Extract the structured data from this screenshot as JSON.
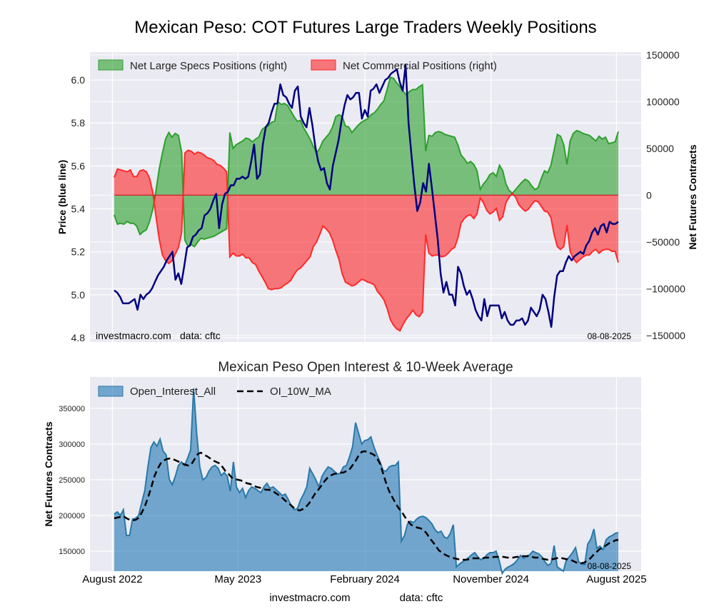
{
  "title": "Mexican Peso: COT Futures Large Traders Weekly Positions",
  "colors": {
    "specs": "#2ca02c",
    "commercial": "#ff0000",
    "price": "#000080",
    "open_interest": "#1f77b4",
    "ma": "#000000",
    "panel_bg": "#eaeaf2"
  },
  "chart_data": [
    {
      "type": "line",
      "name": "positions",
      "x_start": "2022-08-05",
      "x_end": "2025-08-05",
      "left_axis": {
        "label": "Price (blue line)",
        "ylim": [
          4.78,
          6.13
        ],
        "ticks": [
          4.8,
          5.0,
          5.2,
          5.4,
          5.6,
          5.8,
          6.0
        ],
        "tick_labels": [
          "4.8",
          "5.0",
          "5.2",
          "5.4",
          "5.6",
          "5.8",
          "6.0"
        ]
      },
      "right_axis": {
        "label": "Net Futures Contracts",
        "ylim": [
          -157000,
          153000
        ],
        "ticks": [
          -150000,
          -100000,
          -50000,
          0,
          50000,
          100000,
          150000
        ],
        "tick_labels": [
          "−150000",
          "−100000",
          "−50000",
          "0",
          "50000",
          "100000",
          "150000"
        ]
      },
      "legend": [
        "Net Large Specs Positions (right)",
        "Net Commercial Positions (right)"
      ],
      "watermark": "investmacro.com",
      "source": "data: cftc",
      "date_label": "08-08-2025",
      "series": [
        {
          "name": "Net Large Specs Positions (right)",
          "axis": "right",
          "kind": "fill",
          "values": [
            -21000,
            -31000,
            -30000,
            -31000,
            -28000,
            -30000,
            -30000,
            -33000,
            -42000,
            -39000,
            -37000,
            -28000,
            -15000,
            5000,
            28000,
            45000,
            60000,
            67000,
            62000,
            66000,
            64000,
            46000,
            -48000,
            -55000,
            -53000,
            -55000,
            -50000,
            -46000,
            -47000,
            -46000,
            -45000,
            -44000,
            -42000,
            -40000,
            -38000,
            -36000,
            67000,
            50000,
            54000,
            56000,
            58000,
            61000,
            60000,
            57000,
            60000,
            62000,
            70000,
            73000,
            74000,
            78000,
            79000,
            100000,
            97000,
            98000,
            96000,
            90000,
            84000,
            79000,
            80000,
            72000,
            66000,
            60000,
            52000,
            45000,
            50000,
            58000,
            62000,
            66000,
            73000,
            84000,
            86000,
            84000,
            74000,
            73000,
            67000,
            71000,
            75000,
            78000,
            80000,
            82000,
            86000,
            88000,
            92000,
            97000,
            101000,
            113000,
            126000,
            125000,
            120000,
            116000,
            111000,
            107000,
            111000,
            113000,
            113000,
            116000,
            118000,
            47000,
            64000,
            63000,
            67000,
            68000,
            67000,
            65000,
            64000,
            63000,
            62000,
            54000,
            43000,
            39000,
            34000,
            36000,
            33000,
            26000,
            6000,
            12000,
            16000,
            22000,
            24000,
            20000,
            32000,
            26000,
            12000,
            5000,
            2000,
            6000,
            10000,
            14000,
            17000,
            15000,
            10000,
            6000,
            8000,
            18000,
            26000,
            24000,
            32000,
            48000,
            65000,
            63000,
            54000,
            33000,
            58000,
            66000,
            69000,
            68000,
            66000,
            65000,
            64000,
            61000,
            58000,
            63000,
            60000,
            62000,
            55000,
            56000,
            57000,
            68000
          ]
        },
        {
          "name": "Net Commercial Positions (right)",
          "axis": "right",
          "kind": "fill",
          "values": [
            19000,
            28000,
            27000,
            26000,
            25000,
            27000,
            20000,
            20000,
            26000,
            27000,
            25000,
            18000,
            3000,
            -23000,
            -47000,
            -64000,
            -70000,
            -73000,
            -70000,
            -63000,
            -56000,
            -40000,
            45000,
            48000,
            47000,
            44000,
            46000,
            45000,
            43000,
            40000,
            39000,
            37000,
            33000,
            32000,
            29000,
            25000,
            -66000,
            -62000,
            -65000,
            -65000,
            -63000,
            -67000,
            -67000,
            -72000,
            -74000,
            -81000,
            -87000,
            -93000,
            -100000,
            -101000,
            -100000,
            -100000,
            -99000,
            -96000,
            -94000,
            -91000,
            -85000,
            -80000,
            -78000,
            -74000,
            -70000,
            -66000,
            -55000,
            -50000,
            -42000,
            -33000,
            -36000,
            -40000,
            -48000,
            -59000,
            -69000,
            -84000,
            -93000,
            -95000,
            -97000,
            -96000,
            -93000,
            -90000,
            -91000,
            -93000,
            -94000,
            -96000,
            -103000,
            -107000,
            -112000,
            -121000,
            -133000,
            -139000,
            -143000,
            -145000,
            -138000,
            -132000,
            -128000,
            -123000,
            -128000,
            -130000,
            -125000,
            -42000,
            -62000,
            -65000,
            -64000,
            -64000,
            -66000,
            -65000,
            -62000,
            -58000,
            -56000,
            -46000,
            -30000,
            -25000,
            -22000,
            -21000,
            -25000,
            -20000,
            -3000,
            -8000,
            -16000,
            -20000,
            -18000,
            -14000,
            -27000,
            -23000,
            -8000,
            -2000,
            2000,
            -2000,
            -10000,
            -14000,
            -17000,
            -15000,
            -10000,
            -6000,
            -7000,
            -12000,
            -17000,
            -18000,
            -24000,
            -42000,
            -55000,
            -58000,
            -55000,
            -32000,
            -60000,
            -68000,
            -72000,
            -69000,
            -66000,
            -64000,
            -64000,
            -60000,
            -58000,
            -62000,
            -59000,
            -58000,
            -58000,
            -60000,
            -60000,
            -72000
          ]
        },
        {
          "name": "Price (blue line)",
          "axis": "left",
          "kind": "line",
          "values": [
            5.02,
            5.01,
            4.99,
            4.96,
            4.96,
            4.96,
            4.97,
            4.98,
            4.93,
            5.0,
            4.98,
            5.0,
            5.01,
            5.03,
            5.06,
            5.09,
            5.11,
            5.13,
            5.16,
            5.18,
            5.2,
            5.07,
            5.1,
            5.05,
            5.13,
            5.22,
            5.23,
            5.27,
            5.28,
            5.3,
            5.31,
            5.37,
            5.38,
            5.4,
            5.44,
            5.47,
            5.31,
            5.42,
            5.47,
            5.48,
            5.51,
            5.51,
            5.54,
            5.54,
            5.55,
            5.54,
            5.55,
            5.62,
            5.7,
            5.54,
            5.56,
            5.7,
            5.78,
            5.8,
            5.85,
            5.89,
            5.89,
            5.98,
            5.93,
            5.92,
            5.89,
            5.87,
            5.95,
            5.97,
            5.83,
            5.8,
            5.78,
            5.87,
            5.79,
            5.69,
            5.62,
            5.58,
            5.59,
            5.52,
            5.49,
            5.6,
            5.66,
            5.72,
            5.81,
            5.88,
            5.93,
            5.91,
            5.92,
            5.94,
            5.94,
            5.82,
            5.86,
            5.83,
            5.95,
            5.96,
            5.98,
            5.94,
            5.97,
            6.0,
            6.01,
            6.03,
            6.04,
            6.05,
            5.99,
            5.95,
            6.07,
            5.8,
            5.65,
            5.51,
            5.39,
            5.43,
            5.52,
            5.48,
            5.61,
            5.5,
            5.38,
            5.26,
            5.1,
            5.01,
            5.06,
            5.0,
            5.0,
            4.95,
            5.13,
            5.1,
            5.04,
            5.0,
            5.02,
            4.98,
            4.93,
            4.9,
            4.88,
            4.98,
            4.9,
            4.95,
            4.95,
            4.95,
            4.95,
            4.89,
            4.92,
            4.88,
            4.86,
            4.86,
            4.88,
            4.88,
            4.89,
            4.86,
            4.88,
            4.94,
            4.92,
            4.9,
            4.93,
            5.0,
            4.98,
            4.92,
            4.85,
            4.99,
            5.09,
            5.11,
            5.11,
            5.15,
            5.18,
            5.16,
            5.18,
            5.19,
            5.2,
            5.19,
            5.23,
            5.25,
            5.29,
            5.31,
            5.28,
            5.32,
            5.33,
            5.29,
            5.34,
            5.33,
            5.33,
            5.34
          ]
        }
      ]
    },
    {
      "type": "area",
      "name": "open-interest",
      "title": "Mexican Peso Open Interest & 10-Week Average",
      "ylabel": "Net Futures Contracts",
      "ylim": [
        122000,
        394000
      ],
      "ticks": [
        150000,
        200000,
        250000,
        300000,
        350000
      ],
      "tick_labels": [
        "150000",
        "200000",
        "250000",
        "300000",
        "350000"
      ],
      "x_tick_labels": [
        "August 2022",
        "May 2023",
        "February 2024",
        "November 2024",
        "August 2025"
      ],
      "x_tick_dates": [
        "2022-08-01",
        "2023-05-01",
        "2024-02-01",
        "2024-11-01",
        "2025-08-01"
      ],
      "legend": [
        "Open_Interest_All",
        "OI_10W_MA"
      ],
      "date_label": "08-08-2025",
      "series": [
        {
          "name": "Open_Interest_All",
          "kind": "area",
          "values": [
            202000,
            205000,
            200000,
            208000,
            172000,
            172000,
            195000,
            196000,
            200000,
            218000,
            235000,
            268000,
            295000,
            303000,
            297000,
            307000,
            290000,
            285000,
            251000,
            243000,
            255000,
            270000,
            275000,
            270000,
            280000,
            292000,
            378000,
            315000,
            268000,
            250000,
            253000,
            262000,
            268000,
            270000,
            266000,
            256000,
            260000,
            255000,
            234000,
            275000,
            240000,
            232000,
            238000,
            225000,
            235000,
            240000,
            238000,
            235000,
            232000,
            240000,
            245000,
            238000,
            240000,
            236000,
            232000,
            228000,
            230000,
            222000,
            213000,
            208000,
            210000,
            222000,
            230000,
            240000,
            266000,
            258000,
            250000,
            240000,
            255000,
            262000,
            268000,
            266000,
            262000,
            258000,
            259000,
            268000,
            270000,
            282000,
            296000,
            330000,
            315000,
            300000,
            305000,
            306000,
            310000,
            296000,
            285000,
            275000,
            263000,
            262000,
            268000,
            270000,
            270000,
            275000,
            164000,
            172000,
            188000,
            192000,
            190000,
            195000,
            198000,
            199000,
            197000,
            193000,
            188000,
            180000,
            176000,
            178000,
            170000,
            168000,
            175000,
            187000,
            128000,
            132000,
            135000,
            138000,
            141000,
            145000,
            148000,
            142000,
            138000,
            140000,
            145000,
            148000,
            148000,
            150000,
            137000,
            119000,
            125000,
            128000,
            130000,
            133000,
            138000,
            144000,
            140000,
            143000,
            145000,
            150000,
            148000,
            146000,
            142000,
            135000,
            130000,
            133000,
            158000,
            128000,
            125000,
            122000,
            138000,
            142000,
            148000,
            155000,
            135000,
            132000,
            131000,
            160000,
            167000,
            181000,
            154000,
            157000,
            152000,
            166000,
            170000,
            172000,
            175000,
            176000
          ]
        },
        {
          "name": "OI_10W_MA",
          "kind": "line",
          "values": [
            196000,
            197000,
            198000,
            199000,
            196000,
            194000,
            193000,
            194000,
            197000,
            205000,
            214000,
            226000,
            240000,
            255000,
            265000,
            273000,
            277000,
            279000,
            280000,
            279000,
            277000,
            275000,
            273000,
            271000,
            270000,
            272000,
            279000,
            286000,
            288000,
            285000,
            283000,
            280000,
            277000,
            275000,
            273000,
            268000,
            262000,
            258000,
            253000,
            251000,
            250000,
            249000,
            247000,
            245000,
            244000,
            242000,
            240000,
            239000,
            238000,
            236000,
            236000,
            235000,
            232000,
            229000,
            226000,
            222000,
            218000,
            215000,
            211000,
            208000,
            207000,
            209000,
            212000,
            217000,
            224000,
            231000,
            236000,
            242000,
            248000,
            253000,
            256000,
            258000,
            259000,
            260000,
            260000,
            262000,
            264000,
            270000,
            276000,
            284000,
            289000,
            290000,
            289000,
            287000,
            285000,
            280000,
            272000,
            258000,
            244000,
            233000,
            225000,
            217000,
            210000,
            205000,
            198000,
            192000,
            187000,
            185000,
            183000,
            182000,
            180000,
            175000,
            168000,
            163000,
            157000,
            151000,
            148000,
            145000,
            143000,
            141000,
            140000,
            139000,
            138000,
            138000,
            138000,
            139000,
            140000,
            140000,
            140000,
            140000,
            141000,
            141000,
            141000,
            142000,
            142000,
            142000,
            142000,
            141000,
            141000,
            141000,
            142000,
            142000,
            143000,
            143000,
            143000,
            142000,
            141000,
            141000,
            140000,
            139000,
            138000,
            138000,
            139000,
            140000,
            141000,
            140000,
            139000,
            138000,
            137000,
            135000,
            133000,
            133000,
            134000,
            137000,
            140000,
            145000,
            149000,
            153000,
            155000,
            158000,
            161000,
            163000,
            165000,
            166000
          ]
        }
      ]
    }
  ],
  "footer": {
    "watermark": "investmacro.com",
    "source": "data: cftc"
  }
}
